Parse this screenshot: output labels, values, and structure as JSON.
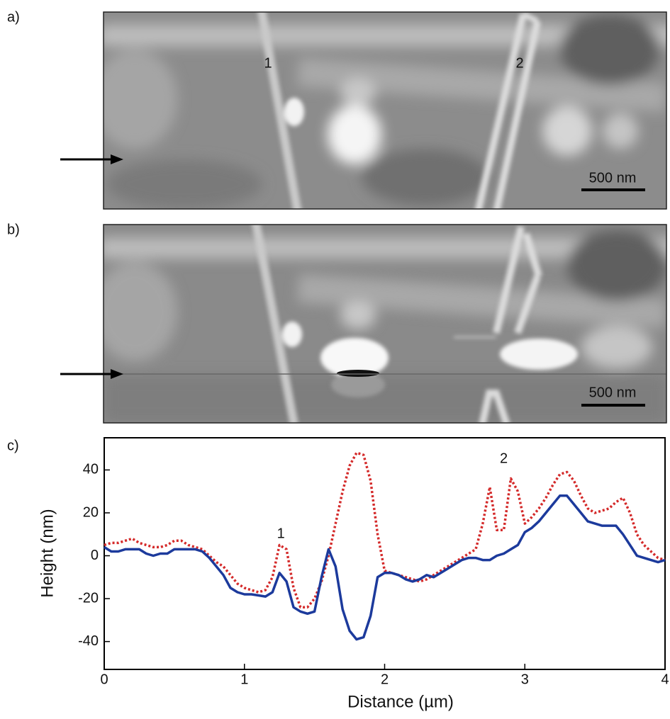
{
  "panels": [
    {
      "label": "a)",
      "annotations": [
        "1",
        "2"
      ],
      "scale_bar": "500 nm"
    },
    {
      "label": "b)",
      "scale_bar": "500 nm"
    },
    {
      "label": "c)"
    }
  ],
  "chart_data": {
    "type": "line",
    "x_label": "Distance (µm)",
    "y_label": "Height (nm)",
    "annotations": [
      "1",
      "2"
    ],
    "xlim": [
      0,
      4
    ],
    "ylim": [
      -53,
      55
    ],
    "xticks": [
      0,
      1,
      2,
      3,
      4
    ],
    "yticks": [
      -40,
      -20,
      0,
      20,
      40
    ],
    "x": [
      0,
      0.05,
      0.1,
      0.15,
      0.2,
      0.25,
      0.3,
      0.35,
      0.4,
      0.45,
      0.5,
      0.55,
      0.6,
      0.65,
      0.7,
      0.75,
      0.8,
      0.85,
      0.9,
      0.95,
      1,
      1.05,
      1.1,
      1.15,
      1.2,
      1.25,
      1.3,
      1.35,
      1.4,
      1.45,
      1.5,
      1.55,
      1.6,
      1.65,
      1.7,
      1.75,
      1.8,
      1.85,
      1.9,
      1.95,
      2,
      2.05,
      2.1,
      2.15,
      2.2,
      2.25,
      2.3,
      2.35,
      2.4,
      2.45,
      2.5,
      2.55,
      2.6,
      2.65,
      2.7,
      2.75,
      2.8,
      2.85,
      2.9,
      2.95,
      3,
      3.05,
      3.1,
      3.15,
      3.2,
      3.25,
      3.3,
      3.35,
      3.4,
      3.45,
      3.5,
      3.55,
      3.6,
      3.65,
      3.7,
      3.75,
      3.8,
      3.85,
      3.9,
      3.95,
      4
    ],
    "series": [
      {
        "color": "#d42a2a",
        "dash": "dotted",
        "values": [
          5,
          6,
          6,
          7,
          8,
          6,
          5,
          4,
          4,
          5,
          7,
          7,
          5,
          4,
          3,
          0,
          -3,
          -5,
          -9,
          -13,
          -15,
          -16,
          -17,
          -16,
          -10,
          5,
          3,
          -15,
          -24,
          -24,
          -20,
          -12,
          0,
          15,
          30,
          42,
          48,
          47,
          35,
          10,
          -7,
          -8,
          -9,
          -10,
          -11,
          -12,
          -11,
          -9,
          -7,
          -5,
          -3,
          -1,
          1,
          3,
          15,
          32,
          12,
          12,
          36,
          30,
          15,
          18,
          22,
          27,
          33,
          38,
          39,
          35,
          28,
          22,
          20,
          21,
          22,
          25,
          27,
          20,
          10,
          5,
          2,
          -1,
          -2
        ]
      },
      {
        "color": "#1c3a9c",
        "dash": "solid",
        "values": [
          4,
          2,
          2,
          3,
          3,
          3,
          1,
          0,
          1,
          1,
          3,
          3,
          3,
          3,
          2,
          -1,
          -5,
          -9,
          -15,
          -17,
          -18,
          -18,
          -18.5,
          -19,
          -17,
          -8,
          -12,
          -24,
          -26,
          -27,
          -26,
          -10,
          3,
          -5,
          -25,
          -35,
          -39,
          -38,
          -28,
          -10,
          -8,
          -8,
          -9,
          -11,
          -12,
          -11,
          -9,
          -10,
          -8,
          -6,
          -4,
          -2,
          -1,
          -1,
          -2,
          -2,
          0,
          1,
          3,
          5,
          11,
          13,
          16,
          20,
          24,
          28,
          28,
          24,
          20,
          16,
          15,
          14,
          14,
          14,
          10,
          5,
          0,
          -1,
          -2,
          -3,
          -2
        ]
      }
    ]
  }
}
